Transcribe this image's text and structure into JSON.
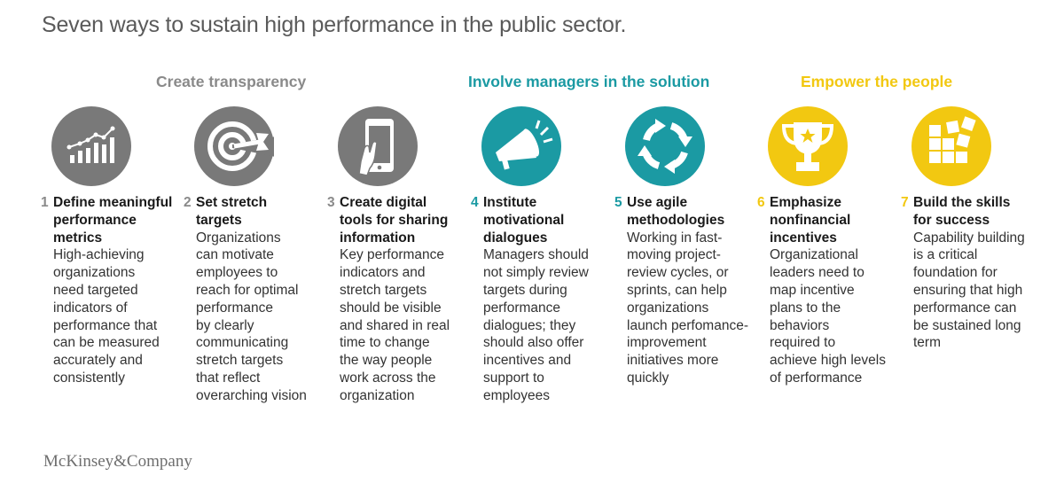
{
  "title": "Seven ways to sustain high performance in the public sector.",
  "colors": {
    "gray": "#797979",
    "teal": "#1b9aa3",
    "yellow": "#f2c811"
  },
  "groups": [
    {
      "label": "Create transparency",
      "color": "#8a8a8a"
    },
    {
      "label": "Involve managers in the solution",
      "color": "#1b9aa3"
    },
    {
      "label": "Empower the people",
      "color": "#f2c811"
    }
  ],
  "items": [
    {
      "num": "1",
      "heading": [
        "Define meaningful",
        "performance",
        "metrics"
      ],
      "body": [
        "High-achieving",
        "organizations",
        "need targeted",
        "indicators of",
        "performance that",
        "can be measured",
        "accurately and",
        "consistently"
      ],
      "icon": "bar-chart-icon",
      "color": "#797979",
      "num_color": "#8a8a8a"
    },
    {
      "num": "2",
      "heading": [
        "Set stretch",
        "targets"
      ],
      "body": [
        "Organizations",
        "can motivate",
        "employees to",
        "reach for optimal",
        "performance",
        "by clearly",
        "communicating",
        "stretch targets",
        "that reflect",
        "overarching vision"
      ],
      "icon": "target-icon",
      "color": "#797979",
      "num_color": "#8a8a8a"
    },
    {
      "num": "3",
      "heading": [
        "Create digital",
        "tools for sharing",
        "information"
      ],
      "body": [
        "Key performance",
        "indicators and",
        "stretch targets",
        "should be visible",
        "and shared in real",
        "time to change",
        "the way people",
        "work across the",
        "organization"
      ],
      "icon": "smartphone-icon",
      "color": "#797979",
      "num_color": "#8a8a8a"
    },
    {
      "num": "4",
      "heading": [
        "Institute",
        "motivational",
        "dialogues"
      ],
      "body": [
        "Managers should",
        "not simply review",
        "targets during",
        "performance",
        "dialogues; they",
        "should also offer",
        "incentives and",
        "support to",
        "employees"
      ],
      "icon": "megaphone-icon",
      "color": "#1b9aa3",
      "num_color": "#1b9aa3"
    },
    {
      "num": "5",
      "heading": [
        "Use agile",
        "methodologies"
      ],
      "body": [
        "Working in fast-",
        "moving project-",
        "review cycles, or",
        "sprints, can help",
        "organizations",
        "launch perfomance-",
        "improvement",
        "initiatives more",
        "quickly"
      ],
      "icon": "cycle-arrows-icon",
      "color": "#1b9aa3",
      "num_color": "#1b9aa3"
    },
    {
      "num": "6",
      "heading": [
        "Emphasize",
        "nonfinancial",
        "incentives"
      ],
      "body": [
        "Organizational",
        "leaders need to",
        "map incentive",
        "plans to the",
        "behaviors",
        "required to",
        "achieve high levels",
        "of performance"
      ],
      "icon": "trophy-icon",
      "color": "#f2c811",
      "num_color": "#f2c811"
    },
    {
      "num": "7",
      "heading": [
        "Build the skills",
        "for success"
      ],
      "body": [
        "Capability building",
        "is a critical",
        "foundation for",
        "ensuring that high",
        "performance can",
        "be sustained long",
        "term"
      ],
      "icon": "building-blocks-icon",
      "color": "#f2c811",
      "num_color": "#f2c811"
    }
  ],
  "brand": "McKinsey&Company"
}
